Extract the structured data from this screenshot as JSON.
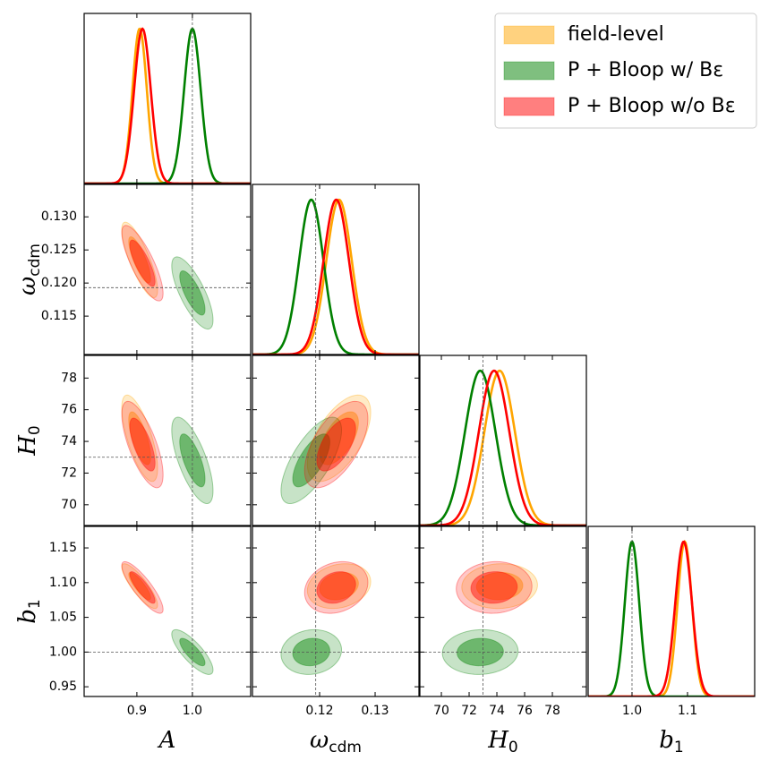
{
  "chart_data": {
    "type": "corner",
    "legend": "upper right",
    "params": [
      {
        "symbol": "A",
        "xlim": [
          0.805,
          1.105
        ],
        "xticks": [
          0.9,
          {
            "value": 1.0,
            "label": "1.0"
          }
        ],
        "truth": 1.0
      },
      {
        "symbol": "ω",
        "sub": "cdm",
        "xlim": [
          0.1079,
          0.1379
        ],
        "xticks": [
          0.12,
          0.13
        ],
        "ylim": [
          0.1092,
          0.1349
        ],
        "yticks": [
          {
            "value": 0.13,
            "label": "0.130"
          },
          0.125,
          {
            "value": 0.12,
            "label": "0.120"
          },
          0.115
        ],
        "truth": 0.1193
      },
      {
        "symbol": "H",
        "sub": "0",
        "xlim": [
          68.45,
          80.45
        ],
        "xticks": [
          70,
          72,
          74,
          76,
          78
        ],
        "ylim": [
          68.69,
          79.43
        ],
        "yticks": [
          78,
          76,
          74,
          72,
          70
        ],
        "truth": 73
      },
      {
        "symbol": "b",
        "sub": "1",
        "xlim": [
          0.921,
          1.221
        ],
        "xticks": [
          {
            "value": 1.0,
            "label": "1.0"
          },
          1.1
        ],
        "ylim": [
          0.936,
          1.181
        ],
        "yticks": [
          1.15,
          {
            "value": 1.1,
            "label": "1.10"
          },
          1.05,
          {
            "value": 1.0,
            "label": "1.00"
          },
          0.95
        ],
        "truth": 1.0
      }
    ],
    "series": [
      {
        "name": "field-level",
        "color": "#ffa500",
        "mean": [
          0.905,
          0.1235,
          74.2,
          1.095
        ],
        "sigma": [
          0.013,
          0.0023,
          1.1,
          0.013
        ],
        "corr": [
          -0.8,
          -0.7,
          -0.85,
          0.6,
          0.2,
          0.05
        ]
      },
      {
        "name": "P + Bloop w/ Bε",
        "color": "#008000",
        "mean": [
          1.0,
          0.1185,
          72.8,
          1.0
        ],
        "sigma": [
          0.015,
          0.0022,
          1.1,
          0.013
        ],
        "corr": [
          -0.75,
          -0.7,
          -0.8,
          0.7,
          0.1,
          0.05
        ]
      },
      {
        "name": "P + Bloop w/o Bε",
        "color": "#ff0000",
        "mean": [
          0.91,
          0.123,
          73.8,
          1.093
        ],
        "sigma": [
          0.015,
          0.0023,
          1.1,
          0.015
        ],
        "corr": [
          -0.8,
          -0.7,
          -0.85,
          0.6,
          0.2,
          0.05
        ]
      }
    ]
  }
}
